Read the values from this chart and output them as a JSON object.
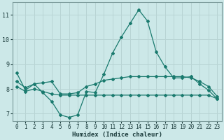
{
  "title": "",
  "xlabel": "Humidex (Indice chaleur)",
  "ylabel": "",
  "xlim": [
    -0.5,
    23.5
  ],
  "ylim": [
    6.7,
    11.5
  ],
  "xticks": [
    0,
    1,
    2,
    3,
    4,
    5,
    6,
    7,
    8,
    9,
    10,
    11,
    12,
    13,
    14,
    15,
    16,
    17,
    18,
    19,
    20,
    21,
    22,
    23
  ],
  "yticks": [
    7,
    8,
    9,
    10,
    11
  ],
  "bg_color": "#cce8e8",
  "grid_color": "#b8d4d4",
  "line_color": "#1a7a6e",
  "line1_x": [
    0,
    1,
    2,
    3,
    4,
    5,
    6,
    7,
    8,
    9,
    10,
    11,
    12,
    13,
    14,
    15,
    16,
    17,
    18,
    19,
    20,
    21,
    22,
    23
  ],
  "line1_y": [
    8.65,
    7.95,
    8.2,
    7.85,
    7.5,
    6.95,
    6.85,
    6.95,
    7.9,
    7.85,
    8.6,
    9.45,
    10.1,
    10.65,
    11.2,
    10.75,
    9.5,
    8.9,
    8.45,
    8.45,
    8.5,
    8.2,
    7.95,
    7.6
  ],
  "line2_x": [
    0,
    1,
    2,
    3,
    4,
    5,
    6,
    7,
    8,
    9,
    10,
    11,
    12,
    13,
    14,
    15,
    16,
    17,
    18,
    19,
    20,
    21,
    22,
    23
  ],
  "line2_y": [
    8.3,
    8.05,
    8.2,
    8.25,
    8.3,
    7.8,
    7.8,
    7.85,
    8.1,
    8.2,
    8.35,
    8.4,
    8.45,
    8.5,
    8.5,
    8.5,
    8.5,
    8.5,
    8.5,
    8.5,
    8.45,
    8.3,
    8.1,
    7.7
  ],
  "line3_x": [
    0,
    1,
    2,
    3,
    4,
    5,
    6,
    7,
    8,
    9,
    10,
    11,
    12,
    13,
    14,
    15,
    16,
    17,
    18,
    19,
    20,
    21,
    22,
    23
  ],
  "line3_y": [
    8.1,
    7.9,
    8.0,
    7.9,
    7.8,
    7.75,
    7.75,
    7.75,
    7.75,
    7.75,
    7.75,
    7.75,
    7.75,
    7.75,
    7.75,
    7.75,
    7.75,
    7.75,
    7.75,
    7.75,
    7.75,
    7.75,
    7.75,
    7.6
  ],
  "tick_fontsize": 5.5,
  "xlabel_fontsize": 6.5
}
